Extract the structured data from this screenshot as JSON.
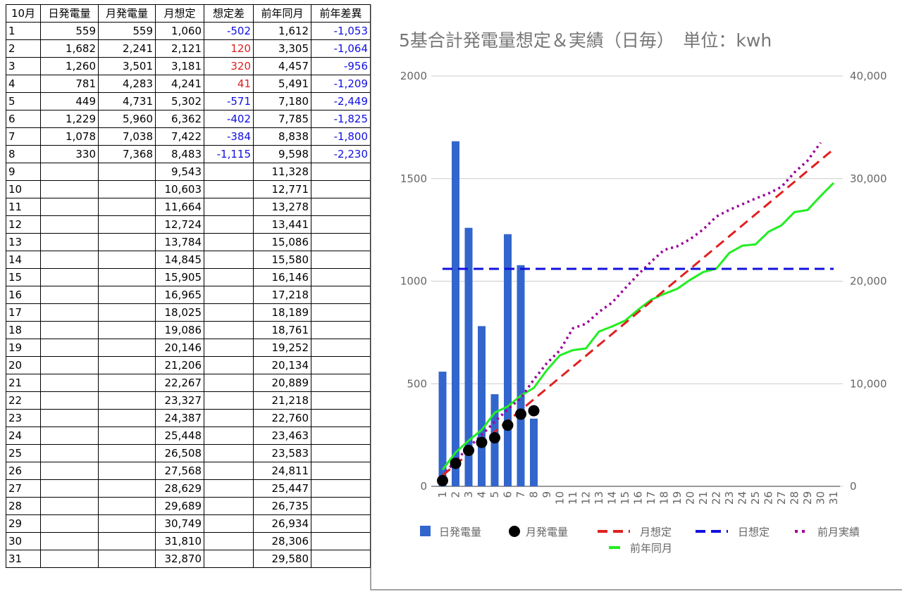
{
  "table": {
    "header": [
      "10月",
      "日発電量",
      "月発電量",
      "月想定",
      "想定差",
      "前年同月",
      "前年差異"
    ],
    "rows": [
      [
        "1",
        "559",
        "559",
        "1,060",
        "-502",
        "1,612",
        "-1,053"
      ],
      [
        "2",
        "1,682",
        "2,241",
        "2,121",
        "120",
        "3,305",
        "-1,064"
      ],
      [
        "3",
        "1,260",
        "3,501",
        "3,181",
        "320",
        "4,457",
        "-956"
      ],
      [
        "4",
        "781",
        "4,283",
        "4,241",
        "41",
        "5,491",
        "-1,209"
      ],
      [
        "5",
        "449",
        "4,731",
        "5,302",
        "-571",
        "7,180",
        "-2,449"
      ],
      [
        "6",
        "1,229",
        "5,960",
        "6,362",
        "-402",
        "7,785",
        "-1,825"
      ],
      [
        "7",
        "1,078",
        "7,038",
        "7,422",
        "-384",
        "8,838",
        "-1,800"
      ],
      [
        "8",
        "330",
        "7,368",
        "8,483",
        "-1,115",
        "9,598",
        "-2,230"
      ],
      [
        "9",
        null,
        null,
        "9,543",
        null,
        "11,328",
        null
      ],
      [
        "10",
        null,
        null,
        "10,603",
        null,
        "12,771",
        null
      ],
      [
        "11",
        null,
        null,
        "11,664",
        null,
        "13,278",
        null
      ],
      [
        "12",
        null,
        null,
        "12,724",
        null,
        "13,441",
        null
      ],
      [
        "13",
        null,
        null,
        "13,784",
        null,
        "15,086",
        null
      ],
      [
        "14",
        null,
        null,
        "14,845",
        null,
        "15,580",
        null
      ],
      [
        "15",
        null,
        null,
        "15,905",
        null,
        "16,146",
        null
      ],
      [
        "16",
        null,
        null,
        "16,965",
        null,
        "17,218",
        null
      ],
      [
        "17",
        null,
        null,
        "18,025",
        null,
        "18,189",
        null
      ],
      [
        "18",
        null,
        null,
        "19,086",
        null,
        "18,761",
        null
      ],
      [
        "19",
        null,
        null,
        "20,146",
        null,
        "19,252",
        null
      ],
      [
        "20",
        null,
        null,
        "21,206",
        null,
        "20,134",
        null
      ],
      [
        "21",
        null,
        null,
        "22,267",
        null,
        "20,889",
        null
      ],
      [
        "22",
        null,
        null,
        "23,327",
        null,
        "21,218",
        null
      ],
      [
        "23",
        null,
        null,
        "24,387",
        null,
        "22,760",
        null
      ],
      [
        "24",
        null,
        null,
        "25,448",
        null,
        "23,463",
        null
      ],
      [
        "25",
        null,
        null,
        "26,508",
        null,
        "23,583",
        null
      ],
      [
        "26",
        null,
        null,
        "27,568",
        null,
        "24,811",
        null
      ],
      [
        "27",
        null,
        null,
        "28,629",
        null,
        "25,447",
        null
      ],
      [
        "28",
        null,
        null,
        "29,689",
        null,
        "26,735",
        null
      ],
      [
        "29",
        null,
        null,
        "30,749",
        null,
        "26,934",
        null
      ],
      [
        "30",
        null,
        null,
        "31,810",
        null,
        "28,306",
        null
      ],
      [
        "31",
        null,
        null,
        "32,870",
        null,
        "29,580",
        null
      ]
    ]
  },
  "chart_data": {
    "type": "combo",
    "title": "5基合計発電量想定＆実績（日毎）　単位：kwh",
    "categories": [
      "1",
      "2",
      "3",
      "4",
      "5",
      "6",
      "7",
      "8",
      "9",
      "10",
      "11",
      "12",
      "13",
      "14",
      "15",
      "16",
      "17",
      "18",
      "19",
      "20",
      "21",
      "22",
      "23",
      "24",
      "25",
      "26",
      "27",
      "28",
      "29",
      "30",
      "31"
    ],
    "ylim": [
      0,
      2000
    ],
    "yticks": [
      0,
      500,
      1000,
      1500,
      2000
    ],
    "y2lim": [
      0,
      40000
    ],
    "y2ticks": [
      0,
      {
        "value": 10000,
        "label": "10,000"
      },
      {
        "value": 20000,
        "label": "20,000"
      },
      {
        "value": 30000,
        "label": "30,000"
      },
      {
        "value": 40000,
        "label": "40,000"
      }
    ],
    "grid": true,
    "legend": "bottom",
    "series": [
      {
        "name": "日発電量",
        "color": "#3366cc",
        "style": "bar",
        "values": [
          559,
          1682,
          1260,
          781,
          449,
          1229,
          1078,
          330,
          null,
          null,
          null,
          null,
          null,
          null,
          null,
          null,
          null,
          null,
          null,
          null,
          null,
          null,
          null,
          null,
          null,
          null,
          null,
          null,
          null,
          null,
          null
        ]
      },
      {
        "name": "月発電量",
        "color": "#000000",
        "style": "scatter",
        "axis": "y2",
        "values": [
          559,
          2241,
          3501,
          4283,
          4731,
          5960,
          7038,
          7368,
          null,
          null,
          null,
          null,
          null,
          null,
          null,
          null,
          null,
          null,
          null,
          null,
          null,
          null,
          null,
          null,
          null,
          null,
          null,
          null,
          null,
          null,
          null
        ]
      },
      {
        "name": "月想定",
        "color": "#e02020",
        "style": "dash",
        "axis": "y2",
        "values": [
          1060,
          2121,
          3181,
          4241,
          5302,
          6362,
          7422,
          8483,
          9543,
          10603,
          11664,
          12724,
          13784,
          14845,
          15905,
          16965,
          18025,
          19086,
          20146,
          21206,
          22267,
          23327,
          24387,
          25448,
          26508,
          27568,
          28629,
          29689,
          30749,
          31810,
          32870
        ]
      },
      {
        "name": "日想定",
        "color": "#1010e0",
        "style": "dash",
        "values": [
          1060,
          1060,
          1060,
          1060,
          1060,
          1060,
          1060,
          1060,
          1060,
          1060,
          1060,
          1060,
          1060,
          1060,
          1060,
          1060,
          1060,
          1060,
          1060,
          1060,
          1060,
          1060,
          1060,
          1060,
          1060,
          1060,
          1060,
          1060,
          1060,
          1060,
          1060
        ]
      },
      {
        "name": "前月実績",
        "color": "#990099",
        "style": "dot",
        "axis": "y2",
        "values": [
          1000,
          2500,
          3800,
          5000,
          6300,
          7500,
          8600,
          10400,
          12000,
          13250,
          15400,
          15850,
          17000,
          17900,
          19300,
          20650,
          21900,
          23050,
          23400,
          24100,
          25050,
          26300,
          26950,
          27500,
          28050,
          28550,
          29200,
          30600,
          31750,
          33500,
          null
        ]
      },
      {
        "name": "前年同月",
        "color": "#22ee22",
        "style": "solid",
        "axis": "y2",
        "values": [
          1612,
          3305,
          4457,
          5491,
          7180,
          7785,
          8838,
          9598,
          11328,
          12771,
          13278,
          13441,
          15086,
          15580,
          16146,
          17218,
          18189,
          18761,
          19252,
          20134,
          20889,
          21218,
          22760,
          23463,
          23583,
          24811,
          25447,
          26735,
          26934,
          28306,
          29580
        ]
      }
    ]
  }
}
